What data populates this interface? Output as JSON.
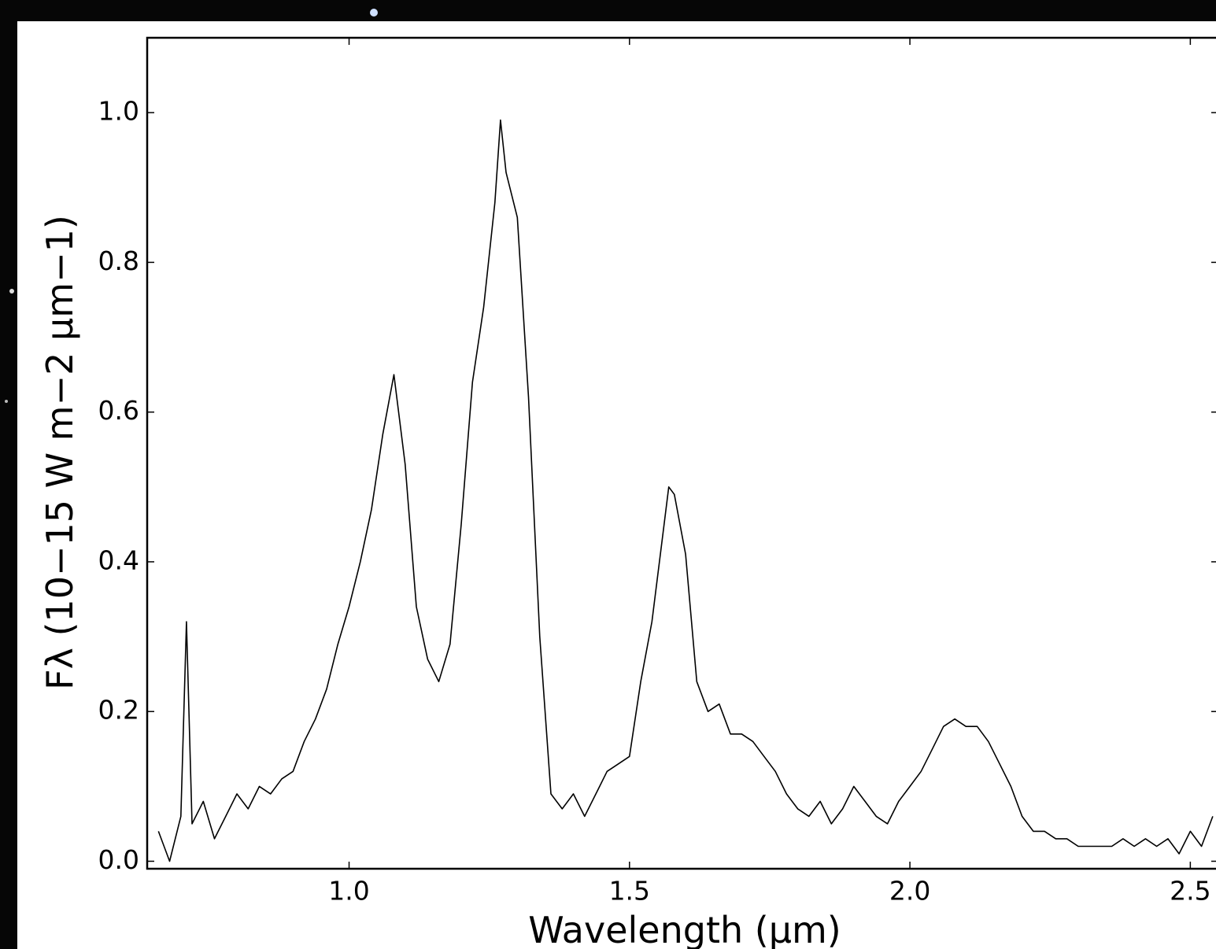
{
  "chart_data": {
    "type": "line",
    "x_label": "Wavelength (μm)",
    "y_label": "Fλ (10−15 W m−2 μm−1)",
    "x": [
      0.66,
      0.68,
      0.7,
      0.71,
      0.72,
      0.74,
      0.76,
      0.78,
      0.8,
      0.82,
      0.84,
      0.86,
      0.88,
      0.9,
      0.92,
      0.94,
      0.96,
      0.98,
      1.0,
      1.02,
      1.04,
      1.06,
      1.08,
      1.1,
      1.12,
      1.14,
      1.16,
      1.18,
      1.2,
      1.22,
      1.24,
      1.26,
      1.27,
      1.28,
      1.3,
      1.32,
      1.34,
      1.36,
      1.38,
      1.4,
      1.42,
      1.44,
      1.46,
      1.48,
      1.5,
      1.52,
      1.54,
      1.56,
      1.57,
      1.58,
      1.6,
      1.62,
      1.64,
      1.66,
      1.68,
      1.7,
      1.72,
      1.74,
      1.76,
      1.78,
      1.8,
      1.82,
      1.84,
      1.86,
      1.88,
      1.9,
      1.92,
      1.94,
      1.96,
      1.98,
      2.0,
      2.02,
      2.04,
      2.06,
      2.08,
      2.1,
      2.12,
      2.14,
      2.16,
      2.18,
      2.2,
      2.22,
      2.24,
      2.26,
      2.28,
      2.3,
      2.32,
      2.34,
      2.36,
      2.38,
      2.4,
      2.42,
      2.44,
      2.46,
      2.48,
      2.5,
      2.52,
      2.54
    ],
    "values": [
      0.04,
      0.0,
      0.06,
      0.32,
      0.05,
      0.08,
      0.03,
      0.06,
      0.09,
      0.07,
      0.1,
      0.09,
      0.11,
      0.12,
      0.16,
      0.19,
      0.23,
      0.29,
      0.34,
      0.4,
      0.47,
      0.57,
      0.65,
      0.53,
      0.34,
      0.27,
      0.24,
      0.29,
      0.45,
      0.64,
      0.74,
      0.88,
      0.99,
      0.92,
      0.86,
      0.62,
      0.3,
      0.09,
      0.07,
      0.09,
      0.06,
      0.09,
      0.12,
      0.13,
      0.14,
      0.24,
      0.32,
      0.44,
      0.5,
      0.49,
      0.41,
      0.24,
      0.2,
      0.21,
      0.17,
      0.17,
      0.16,
      0.14,
      0.12,
      0.09,
      0.07,
      0.06,
      0.08,
      0.05,
      0.07,
      0.1,
      0.08,
      0.06,
      0.05,
      0.08,
      0.1,
      0.12,
      0.15,
      0.18,
      0.19,
      0.18,
      0.18,
      0.16,
      0.13,
      0.1,
      0.06,
      0.04,
      0.04,
      0.03,
      0.03,
      0.02,
      0.02,
      0.02,
      0.02,
      0.03,
      0.02,
      0.03,
      0.02,
      0.03,
      0.01,
      0.04,
      0.02,
      0.06
    ],
    "color": "#000000",
    "xlim": [
      0.64,
      2.55
    ],
    "ylim": [
      -0.01,
      1.1
    ],
    "xticks": [
      {
        "value": 1.0,
        "label": "1.0"
      },
      {
        "value": 1.5,
        "label": "1.5"
      },
      {
        "value": 2.0,
        "label": "2.0"
      },
      {
        "value": 2.5,
        "label": "2.5"
      }
    ],
    "yticks": [
      {
        "value": 0,
        "label": "0.0"
      },
      {
        "value": 0.2,
        "label": "0.2"
      },
      {
        "value": 0.4,
        "label": "0.4"
      },
      {
        "value": 0.6,
        "label": "0.6"
      },
      {
        "value": 0.8,
        "label": "0.8"
      },
      {
        "value": 1.0,
        "label": "1.0"
      }
    ],
    "grid": false
  }
}
